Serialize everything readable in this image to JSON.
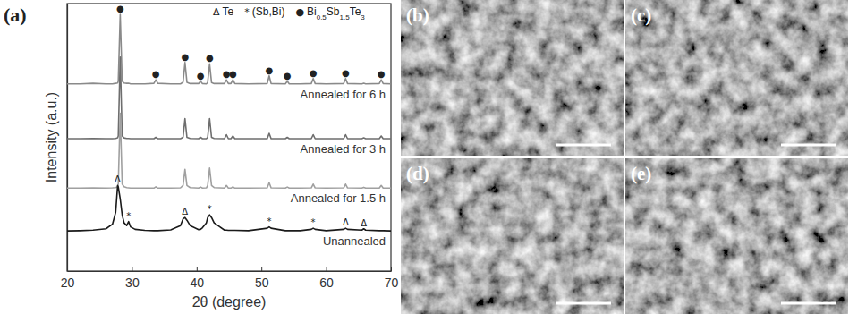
{
  "chart_data": {
    "type": "line",
    "panel_label": "(a)",
    "x_label": "2θ (degree)",
    "y_label": "Intensity (a.u.)",
    "xlim": [
      20,
      70
    ],
    "xticks": [
      20,
      30,
      40,
      50,
      60,
      70
    ],
    "ylim": [
      0,
      100
    ],
    "yticks": [],
    "tick_labels": "x",
    "x": [
      20,
      22,
      24,
      26,
      27,
      27.5,
      27.8,
      27.9,
      28.2,
      28.5,
      28.8,
      29.2,
      29.5,
      29.8,
      30.5,
      32,
      33.4,
      33.7,
      34.0,
      36,
      37.5,
      37.9,
      38.2,
      38.5,
      39,
      40.3,
      40.6,
      40.9,
      41.5,
      41.7,
      42.0,
      42.3,
      42.7,
      44.3,
      44.6,
      44.9,
      45.3,
      45.6,
      45.9,
      48,
      50.9,
      51.2,
      51.5,
      53.7,
      54.0,
      54.3,
      56,
      57.7,
      58.0,
      58.3,
      60,
      62.7,
      63.0,
      63.3,
      65.5,
      65.8,
      66.1,
      68.2,
      68.5,
      68.8,
      70
    ],
    "series": [
      {
        "name": "Annealed for 6 h",
        "color": "#8a8a8a",
        "values": [
          70,
          70,
          70.2,
          70,
          70,
          70.2,
          70.3,
          71,
          96,
          71,
          70.3,
          70.2,
          70.2,
          70,
          70,
          70,
          70.2,
          71.5,
          70.2,
          70,
          70,
          70.6,
          78,
          70.6,
          70.1,
          70.1,
          71,
          70.1,
          70,
          70.5,
          77.5,
          70.5,
          70.1,
          70.1,
          71.5,
          70.1,
          70.1,
          71.5,
          70.1,
          70,
          70.1,
          73,
          70.1,
          70,
          71,
          70,
          70,
          70.1,
          72,
          70.1,
          70,
          70.1,
          72,
          70.1,
          70,
          70.2,
          70,
          70.1,
          71.5,
          70.1,
          70
        ]
      },
      {
        "name": "Annealed for 3 h",
        "color": "#6e6e6e",
        "values": [
          49.5,
          49.5,
          49.6,
          49.5,
          49.5,
          49.6,
          49.8,
          50.5,
          80,
          50.5,
          49.8,
          49.6,
          49.6,
          49.5,
          49.5,
          49.5,
          49.5,
          50,
          49.5,
          49.5,
          49.5,
          50,
          57,
          50,
          49.6,
          49.5,
          50,
          49.5,
          49.5,
          50,
          57,
          50,
          49.6,
          49.5,
          51,
          49.5,
          49.5,
          50.5,
          49.5,
          49.5,
          49.5,
          51.5,
          49.5,
          49.5,
          50,
          49.5,
          49.5,
          49.5,
          51,
          49.5,
          49.5,
          49.5,
          51,
          49.5,
          49.5,
          49.8,
          49.5,
          49.5,
          50.5,
          49.5,
          49.5
        ]
      },
      {
        "name": "Annealed for 1.5 h",
        "color": "#a0a0a0",
        "values": [
          31,
          31,
          31.1,
          31,
          31.1,
          31.2,
          31.5,
          32.5,
          59,
          32.5,
          31.5,
          31.2,
          31.1,
          31,
          31,
          31,
          31,
          31.5,
          31,
          31,
          31.1,
          32,
          38,
          32,
          31.2,
          31,
          31.4,
          31,
          31.1,
          32,
          38.5,
          32,
          31.2,
          31,
          32,
          31,
          31,
          31.5,
          31,
          31,
          31.1,
          33,
          31.1,
          31,
          31.4,
          31,
          31,
          31.1,
          32.5,
          31.1,
          31,
          31.1,
          32.5,
          31.1,
          31,
          31.3,
          31,
          31,
          32,
          31,
          31
        ]
      },
      {
        "name": "Unannealed",
        "color": "#1a1a1a",
        "values": [
          15,
          15.1,
          15.3,
          15.8,
          17.5,
          22,
          32,
          31.5,
          27,
          21,
          18,
          17,
          18.5,
          16.5,
          15.6,
          15.2,
          15.1,
          15.1,
          15.1,
          15.4,
          17,
          19.5,
          20,
          19,
          17,
          15.5,
          15.6,
          16.2,
          18,
          20,
          21,
          20,
          18,
          15.3,
          15.3,
          15.2,
          15.2,
          15.2,
          15.2,
          15.1,
          16,
          16.5,
          16,
          15.1,
          15.1,
          15.1,
          15.1,
          15.6,
          16,
          15.6,
          15.1,
          15.6,
          16,
          15.6,
          15.3,
          15.8,
          15.3,
          15.1,
          15.1,
          15.1,
          15
        ]
      }
    ],
    "phases": [
      {
        "symbol": "Δ",
        "name": "Te",
        "on_series": "Unannealed",
        "peaks": [
          27.8,
          38.2,
          63.0,
          65.8
        ]
      },
      {
        "symbol": "*",
        "name": "(Sb,Bi)",
        "on_series": "Unannealed",
        "peaks": [
          29.5,
          42.0,
          51.2,
          58.0
        ]
      },
      {
        "symbol": "●",
        "name": "Bi0.5Sb1.5Te3",
        "on_series": "Annealed for 6 h",
        "peaks": [
          28.2,
          33.7,
          38.2,
          40.6,
          42.0,
          44.6,
          45.6,
          51.2,
          54.0,
          58.0,
          63.0,
          68.5
        ]
      }
    ]
  },
  "sem_images": [
    {
      "label": "(b)"
    },
    {
      "label": "(c)"
    },
    {
      "label": "(d)"
    },
    {
      "label": "(e)"
    }
  ]
}
